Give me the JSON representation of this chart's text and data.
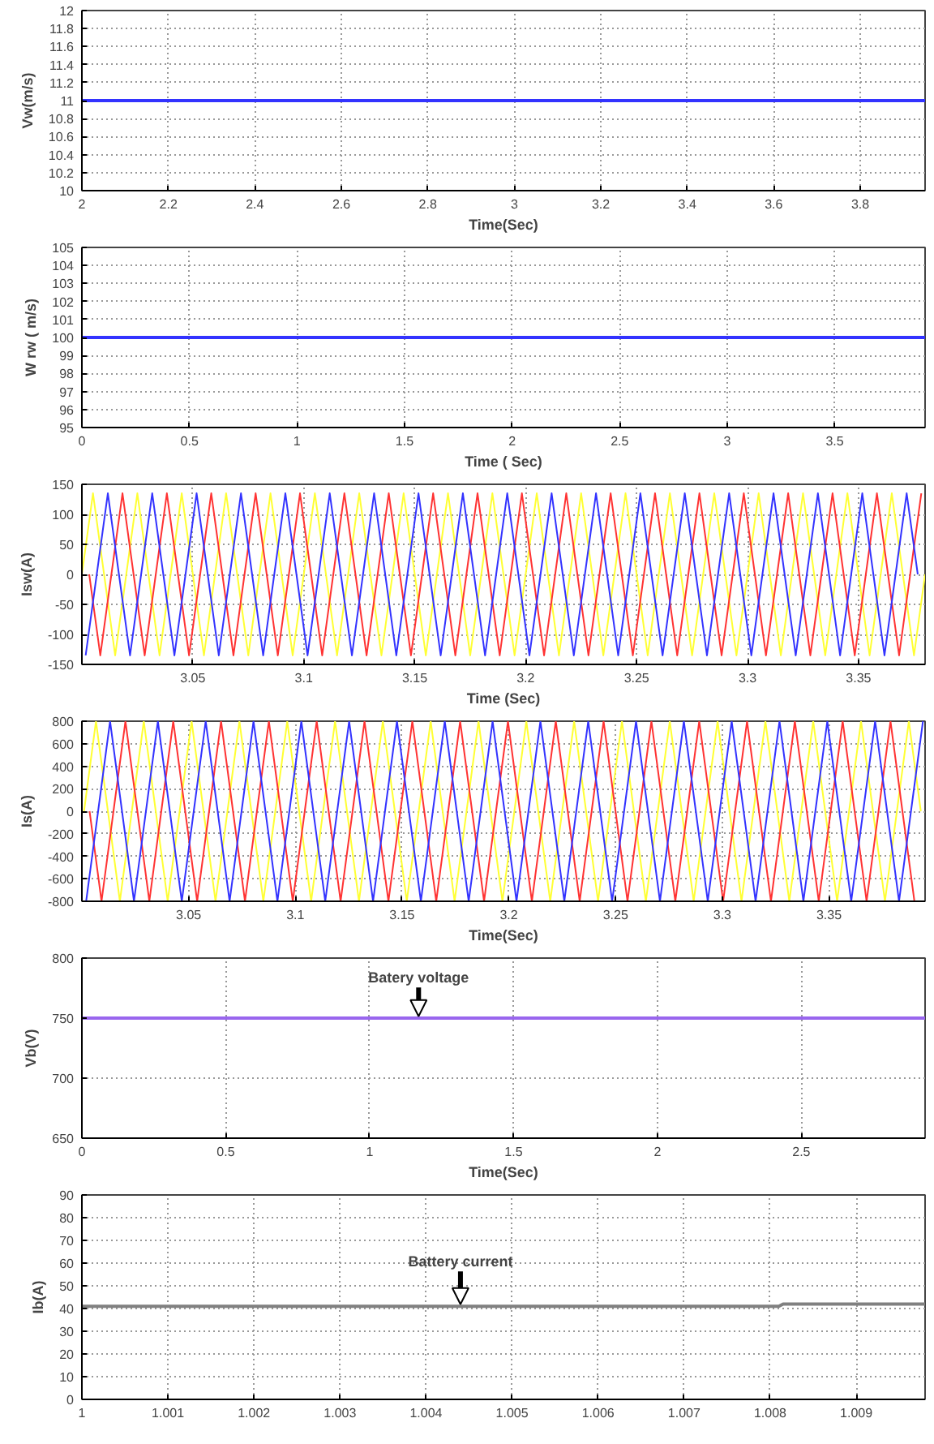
{
  "chart_data": [
    {
      "type": "line",
      "xlabel": "Time(Sec)",
      "ylabel": "Vw(m/s)",
      "xlim": [
        2,
        3.95
      ],
      "ylim": [
        10,
        12
      ],
      "xticks": [
        2,
        2.2,
        2.4,
        2.6,
        2.8,
        3,
        3.2,
        3.4,
        3.6,
        3.8
      ],
      "yticks": [
        10,
        10.2,
        10.4,
        10.6,
        10.8,
        11,
        11.2,
        11.4,
        11.6,
        11.8,
        12
      ],
      "grid": true,
      "series": [
        {
          "color": "#3333ff",
          "x": [
            2,
            3.95
          ],
          "values": [
            11,
            11
          ]
        }
      ]
    },
    {
      "type": "line",
      "xlabel": "Time ( Sec)",
      "ylabel": "W rw ( m/s)",
      "xlim": [
        0,
        3.92
      ],
      "ylim": [
        95,
        105
      ],
      "xticks": [
        0,
        0.5,
        1,
        1.5,
        2,
        2.5,
        3,
        3.5
      ],
      "yticks": [
        95,
        96,
        97,
        98,
        99,
        100,
        101,
        102,
        103,
        104,
        105
      ],
      "grid": true,
      "series": [
        {
          "color": "#3333ff",
          "x": [
            0,
            3.92
          ],
          "values": [
            100,
            100
          ]
        }
      ]
    },
    {
      "type": "line",
      "xlabel": "Time (Sec)",
      "ylabel": "Isw(A)",
      "xlim": [
        3.0,
        3.38
      ],
      "ylim": [
        -150,
        150
      ],
      "xticks": [
        3.05,
        3.1,
        3.15,
        3.2,
        3.25,
        3.3,
        3.35
      ],
      "yticks": [
        -150,
        -100,
        -50,
        0,
        50,
        100,
        150
      ],
      "grid": true,
      "series": [
        {
          "color": "#ffff33",
          "x": [
            3.0,
            3.005,
            3.01,
            3.015,
            3.02,
            3.025,
            3.03,
            3.035,
            3.04,
            3.045,
            3.05,
            3.055,
            3.06,
            3.065,
            3.07,
            3.075,
            3.08,
            3.085,
            3.09,
            3.095,
            3.1,
            3.105,
            3.11,
            3.115,
            3.12,
            3.125,
            3.13,
            3.135,
            3.14,
            3.145,
            3.15,
            3.155,
            3.16,
            3.165,
            3.17,
            3.175,
            3.18,
            3.185,
            3.19,
            3.195,
            3.2,
            3.205,
            3.21,
            3.215,
            3.22,
            3.225,
            3.23,
            3.235,
            3.24,
            3.245,
            3.25,
            3.255,
            3.26,
            3.265,
            3.27,
            3.275,
            3.28,
            3.285,
            3.29,
            3.295,
            3.3,
            3.305,
            3.31,
            3.315,
            3.32,
            3.325,
            3.33,
            3.335,
            3.34,
            3.345,
            3.35,
            3.355,
            3.36,
            3.365,
            3.37,
            3.375,
            3.38
          ],
          "values": [
            0,
            135,
            0,
            -135,
            0,
            135,
            0,
            -135,
            0,
            135,
            0,
            -135,
            0,
            135,
            0,
            -135,
            0,
            135,
            0,
            -135,
            0,
            135,
            0,
            -135,
            0,
            135,
            0,
            -135,
            0,
            135,
            0,
            -135,
            0,
            135,
            0,
            -135,
            0,
            135,
            0,
            -135,
            0,
            135,
            0,
            -135,
            0,
            135,
            0,
            -135,
            0,
            135,
            0,
            -135,
            0,
            135,
            0,
            -135,
            0,
            135,
            0,
            -135,
            0,
            135,
            0,
            -135,
            0,
            135,
            0,
            -135,
            0,
            135,
            0,
            -135,
            0,
            135,
            0,
            -135,
            0
          ]
        },
        {
          "color": "#ff3333",
          "x": [
            3.0033,
            3.0083,
            3.0133,
            3.0183,
            3.0233,
            3.0283,
            3.0333,
            3.0383,
            3.0433,
            3.0483,
            3.0533,
            3.0583,
            3.0633,
            3.0683,
            3.0733,
            3.0783,
            3.0833,
            3.0883,
            3.0933,
            3.0983,
            3.1033,
            3.1083,
            3.1133,
            3.1183,
            3.1233,
            3.1283,
            3.1333,
            3.1383,
            3.1433,
            3.1483,
            3.1533,
            3.1583,
            3.1633,
            3.1683,
            3.1733,
            3.1783,
            3.1833,
            3.1883,
            3.1933,
            3.1983,
            3.2033,
            3.2083,
            3.2133,
            3.2183,
            3.2233,
            3.2283,
            3.2333,
            3.2383,
            3.2433,
            3.2483,
            3.2533,
            3.2583,
            3.2633,
            3.2683,
            3.2733,
            3.2783,
            3.2833,
            3.2883,
            3.2933,
            3.2983,
            3.3033,
            3.3083,
            3.3133,
            3.3183,
            3.3233,
            3.3283,
            3.3333,
            3.3383,
            3.3433,
            3.3483,
            3.3533,
            3.3583,
            3.3633,
            3.3683,
            3.3733,
            3.3783
          ],
          "values": [
            0,
            -135,
            0,
            135,
            0,
            -135,
            0,
            135,
            0,
            -135,
            0,
            135,
            0,
            -135,
            0,
            135,
            0,
            -135,
            0,
            135,
            0,
            -135,
            0,
            135,
            0,
            -135,
            0,
            135,
            0,
            -135,
            0,
            135,
            0,
            -135,
            0,
            135,
            0,
            -135,
            0,
            135,
            0,
            -135,
            0,
            135,
            0,
            -135,
            0,
            135,
            0,
            -135,
            0,
            135,
            0,
            -135,
            0,
            135,
            0,
            -135,
            0,
            135,
            0,
            -135,
            0,
            135,
            0,
            -135,
            0,
            135,
            0,
            -135,
            0,
            135,
            0,
            -135,
            0,
            135
          ]
        },
        {
          "color": "#3333ff",
          "x": [
            3.0017,
            3.0067,
            3.0117,
            3.0167,
            3.0217,
            3.0267,
            3.0317,
            3.0367,
            3.0417,
            3.0467,
            3.0517,
            3.0567,
            3.0617,
            3.0667,
            3.0717,
            3.0767,
            3.0817,
            3.0867,
            3.0917,
            3.0967,
            3.1017,
            3.1067,
            3.1117,
            3.1167,
            3.1217,
            3.1267,
            3.1317,
            3.1367,
            3.1417,
            3.1467,
            3.1517,
            3.1567,
            3.1617,
            3.1667,
            3.1717,
            3.1767,
            3.1817,
            3.1867,
            3.1917,
            3.1967,
            3.2017,
            3.2067,
            3.2117,
            3.2167,
            3.2217,
            3.2267,
            3.2317,
            3.2367,
            3.2417,
            3.2467,
            3.2517,
            3.2567,
            3.2617,
            3.2667,
            3.2717,
            3.2767,
            3.2817,
            3.2867,
            3.2917,
            3.2967,
            3.3017,
            3.3067,
            3.3117,
            3.3167,
            3.3217,
            3.3267,
            3.3317,
            3.3367,
            3.3417,
            3.3467,
            3.3517,
            3.3567,
            3.3617,
            3.3667,
            3.3717,
            3.3767
          ],
          "values": [
            -135,
            0,
            135,
            0,
            -135,
            0,
            135,
            0,
            -135,
            0,
            135,
            0,
            -135,
            0,
            135,
            0,
            -135,
            0,
            135,
            0,
            -135,
            0,
            135,
            0,
            -135,
            0,
            135,
            0,
            -135,
            0,
            135,
            0,
            -135,
            0,
            135,
            0,
            -135,
            0,
            135,
            0,
            -135,
            0,
            135,
            0,
            -135,
            0,
            135,
            0,
            -135,
            0,
            135,
            0,
            -135,
            0,
            135,
            0,
            -135,
            0,
            135,
            0,
            -135,
            0,
            135,
            0,
            -135,
            0,
            135,
            0,
            -135,
            0,
            135,
            0,
            -135,
            0,
            135,
            0
          ]
        }
      ]
    },
    {
      "type": "line",
      "xlabel": "Time(Sec)",
      "ylabel": "Is(A)",
      "xlim": [
        3.0,
        3.395
      ],
      "ylim": [
        -800,
        800
      ],
      "xticks": [
        3.05,
        3.1,
        3.15,
        3.2,
        3.25,
        3.3,
        3.35
      ],
      "yticks": [
        -800,
        -600,
        -400,
        -200,
        0,
        200,
        400,
        600,
        800
      ],
      "grid": true,
      "series": [
        {
          "color": "#ffff33",
          "x": [
            3.001,
            3.0066,
            3.0122,
            3.0178,
            3.0234,
            3.029,
            3.0346,
            3.0402,
            3.0458,
            3.0514,
            3.057,
            3.0626,
            3.0682,
            3.0738,
            3.0794,
            3.085,
            3.0906,
            3.0962,
            3.1018,
            3.1074,
            3.113,
            3.1186,
            3.1242,
            3.1298,
            3.1354,
            3.141,
            3.1466,
            3.1522,
            3.1578,
            3.1634,
            3.169,
            3.1746,
            3.1802,
            3.1858,
            3.1914,
            3.197,
            3.2026,
            3.2082,
            3.2138,
            3.2194,
            3.225,
            3.2306,
            3.2362,
            3.2418,
            3.2474,
            3.253,
            3.2586,
            3.2642,
            3.2698,
            3.2754,
            3.281,
            3.2866,
            3.2922,
            3.2978,
            3.3034,
            3.309,
            3.3146,
            3.3202,
            3.3258,
            3.3314,
            3.337,
            3.3426,
            3.3482,
            3.3538,
            3.3594,
            3.365,
            3.3706,
            3.3762,
            3.3818,
            3.3874,
            3.393
          ],
          "values": [
            0,
            800,
            0,
            -800,
            0,
            800,
            0,
            -800,
            0,
            800,
            0,
            -800,
            0,
            800,
            0,
            -800,
            0,
            800,
            0,
            -800,
            0,
            800,
            0,
            -800,
            0,
            800,
            0,
            -800,
            0,
            800,
            0,
            -800,
            0,
            800,
            0,
            -800,
            0,
            800,
            0,
            -800,
            0,
            800,
            0,
            -800,
            0,
            800,
            0,
            -800,
            0,
            800,
            0,
            -800,
            0,
            800,
            0,
            -800,
            0,
            800,
            0,
            -800,
            0,
            800,
            0,
            -800,
            0,
            800,
            0,
            -800,
            0,
            800,
            0
          ]
        },
        {
          "color": "#ff3333",
          "x": [
            3.0036,
            3.0092,
            3.0148,
            3.0204,
            3.026,
            3.0316,
            3.0372,
            3.0428,
            3.0484,
            3.054,
            3.0596,
            3.0652,
            3.0708,
            3.0764,
            3.082,
            3.0876,
            3.0932,
            3.0988,
            3.1044,
            3.11,
            3.1156,
            3.1212,
            3.1268,
            3.1324,
            3.138,
            3.1436,
            3.1492,
            3.1548,
            3.1604,
            3.166,
            3.1716,
            3.1772,
            3.1828,
            3.1884,
            3.194,
            3.1996,
            3.2052,
            3.2108,
            3.2164,
            3.222,
            3.2276,
            3.2332,
            3.2388,
            3.2444,
            3.25,
            3.2556,
            3.2612,
            3.2668,
            3.2724,
            3.278,
            3.2836,
            3.2892,
            3.2948,
            3.3004,
            3.306,
            3.3116,
            3.3172,
            3.3228,
            3.3284,
            3.334,
            3.3396,
            3.3452,
            3.3508,
            3.3564,
            3.362,
            3.3676,
            3.3732,
            3.3788,
            3.3844,
            3.39
          ],
          "values": [
            0,
            -800,
            0,
            800,
            0,
            -800,
            0,
            800,
            0,
            -800,
            0,
            800,
            0,
            -800,
            0,
            800,
            0,
            -800,
            0,
            800,
            0,
            -800,
            0,
            800,
            0,
            -800,
            0,
            800,
            0,
            -800,
            0,
            800,
            0,
            -800,
            0,
            800,
            0,
            -800,
            0,
            800,
            0,
            -800,
            0,
            800,
            0,
            -800,
            0,
            800,
            0,
            -800,
            0,
            800,
            0,
            -800,
            0,
            800,
            0,
            -800,
            0,
            800,
            0,
            -800,
            0,
            800,
            0,
            -800,
            0,
            800,
            0,
            -800
          ]
        },
        {
          "color": "#3333ff",
          "x": [
            3.002,
            3.0076,
            3.0132,
            3.0188,
            3.0244,
            3.03,
            3.0356,
            3.0412,
            3.0468,
            3.0524,
            3.058,
            3.0636,
            3.0692,
            3.0748,
            3.0804,
            3.086,
            3.0916,
            3.0972,
            3.1028,
            3.1084,
            3.114,
            3.1196,
            3.1252,
            3.1308,
            3.1364,
            3.142,
            3.1476,
            3.1532,
            3.1588,
            3.1644,
            3.17,
            3.1756,
            3.1812,
            3.1868,
            3.1924,
            3.198,
            3.2036,
            3.2092,
            3.2148,
            3.2204,
            3.226,
            3.2316,
            3.2372,
            3.2428,
            3.2484,
            3.254,
            3.2596,
            3.2652,
            3.2708,
            3.2764,
            3.282,
            3.2876,
            3.2932,
            3.2988,
            3.3044,
            3.31,
            3.3156,
            3.3212,
            3.3268,
            3.3324,
            3.338,
            3.3436,
            3.3492,
            3.3548,
            3.3604,
            3.366,
            3.3716,
            3.3772,
            3.3828,
            3.3884,
            3.394
          ],
          "values": [
            -800,
            0,
            800,
            0,
            -800,
            0,
            800,
            0,
            -800,
            0,
            800,
            0,
            -800,
            0,
            800,
            0,
            -800,
            0,
            800,
            0,
            -800,
            0,
            800,
            0,
            -800,
            0,
            800,
            0,
            -800,
            0,
            800,
            0,
            -800,
            0,
            800,
            0,
            -800,
            0,
            800,
            0,
            -800,
            0,
            800,
            0,
            -800,
            0,
            800,
            0,
            -800,
            0,
            800,
            0,
            -800,
            0,
            800,
            0,
            -800,
            0,
            800,
            0,
            -800,
            0,
            800,
            0,
            -800,
            0,
            800,
            0,
            -800,
            0,
            800
          ]
        }
      ]
    },
    {
      "type": "line",
      "xlabel": "Time(Sec)",
      "ylabel": "Vb(V)",
      "xlim": [
        0,
        2.93
      ],
      "ylim": [
        650,
        800
      ],
      "xticks": [
        0,
        0.5,
        1,
        1.5,
        2,
        2.5
      ],
      "yticks": [
        650,
        700,
        750,
        800
      ],
      "grid": true,
      "annotations": [
        {
          "text": "Batery voltage",
          "x": 1.17,
          "y": 750
        }
      ],
      "series": [
        {
          "color": "#9966ee",
          "x": [
            0,
            2.93
          ],
          "values": [
            750,
            750
          ]
        }
      ]
    },
    {
      "type": "line",
      "ylabel": "Ib(A)",
      "xlim": [
        1,
        1.0098
      ],
      "ylim": [
        0,
        90
      ],
      "xticks": [
        1,
        1.001,
        1.002,
        1.003,
        1.004,
        1.005,
        1.006,
        1.007,
        1.008,
        1.009
      ],
      "yticks": [
        0,
        10,
        20,
        30,
        40,
        50,
        60,
        70,
        80,
        90
      ],
      "grid": true,
      "annotations": [
        {
          "text": "Battery current",
          "x": 1.0044,
          "y": 41
        }
      ],
      "series": [
        {
          "color": "#808080",
          "x": [
            1,
            1.0081,
            1.00815,
            1.0098
          ],
          "values": [
            41,
            41,
            42,
            42
          ]
        }
      ]
    }
  ]
}
